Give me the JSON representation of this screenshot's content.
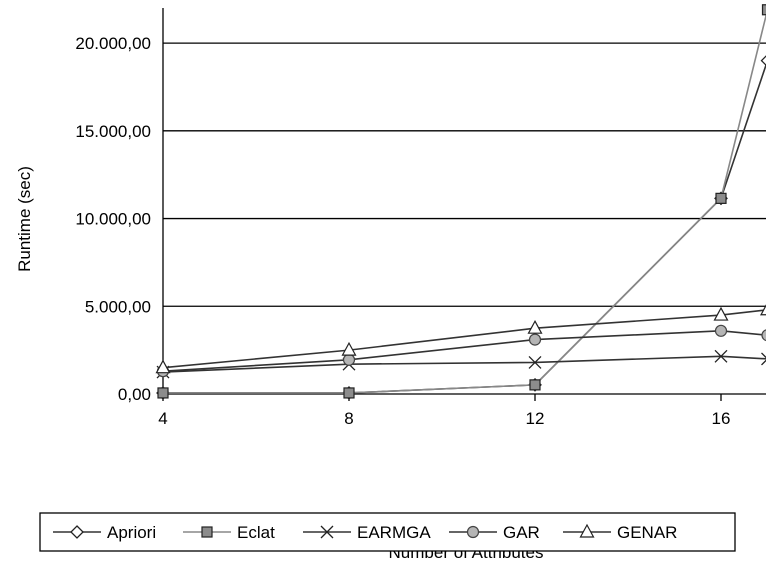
{
  "chart_data": {
    "type": "line",
    "title": "",
    "xlabel": "Number of Attributes",
    "ylabel": "Runtime (sec)",
    "x": [
      4,
      8,
      12,
      16,
      17
    ],
    "x_ticks": [
      "4",
      "8",
      "12",
      "16"
    ],
    "y_ticks": [
      {
        "value": 0,
        "label": "0,00"
      },
      {
        "value": 5000,
        "label": "5.000,00"
      },
      {
        "value": 10000,
        "label": "10.000,00"
      },
      {
        "value": 15000,
        "label": "15.000,00"
      },
      {
        "value": 20000,
        "label": "20.000,00"
      }
    ],
    "xlim": [
      3.6,
      17
    ],
    "ylim": [
      0,
      22000
    ],
    "grid": "horizontal",
    "legend_position": "bottom",
    "series": [
      {
        "name": "Apriori",
        "marker": "diamond",
        "color": "#333333",
        "values": [
          60,
          60,
          520,
          11150,
          19000
        ]
      },
      {
        "name": "Eclat",
        "marker": "square",
        "color": "#888888",
        "values": [
          60,
          60,
          520,
          11150,
          21900
        ]
      },
      {
        "name": "EARMGA",
        "marker": "x",
        "color": "#333333",
        "values": [
          1250,
          1700,
          1800,
          2150,
          2000
        ]
      },
      {
        "name": "GAR",
        "marker": "circle",
        "color": "#333333",
        "values": [
          1300,
          1950,
          3100,
          3600,
          3350
        ]
      },
      {
        "name": "GENAR",
        "marker": "triangle",
        "color": "#333333",
        "values": [
          1500,
          2500,
          3750,
          4500,
          4800
        ]
      }
    ]
  }
}
